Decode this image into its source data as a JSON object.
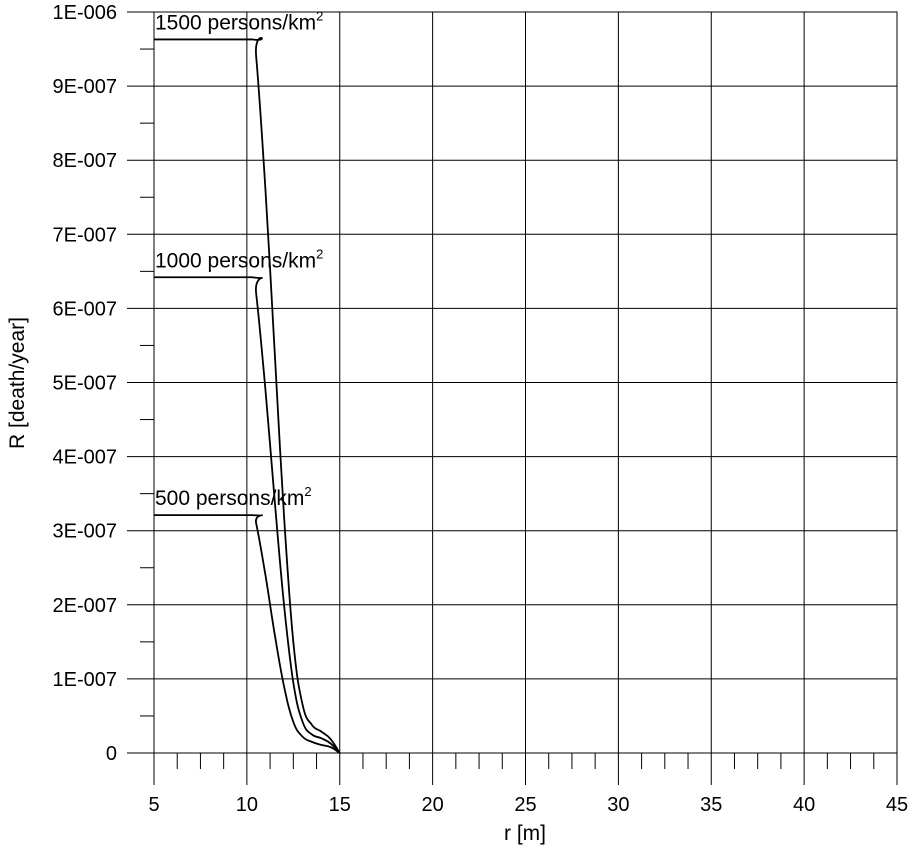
{
  "chart_data": {
    "type": "line",
    "xlabel": "r [m]",
    "ylabel": "R [death/year]",
    "xlim": [
      5,
      45
    ],
    "ylim": [
      0,
      1e-06
    ],
    "x_ticks": [
      "5",
      "10",
      "15",
      "20",
      "25",
      "30",
      "35",
      "40",
      "45"
    ],
    "y_ticks": [
      "0",
      "1E-007",
      "2E-007",
      "3E-007",
      "4E-007",
      "5E-007",
      "6E-007",
      "7E-007",
      "8E-007",
      "9E-007",
      "1E-006"
    ],
    "grid": true,
    "series": [
      {
        "name": "1500 persons/km",
        "superscript": "2",
        "x": [
          5,
          10.3,
          10.5,
          11,
          11.5,
          12,
          12.5,
          13,
          13.5,
          14,
          14.5,
          15
        ],
        "y": [
          9.63e-07,
          9.63e-07,
          9.4e-07,
          7.6e-07,
          5.4e-07,
          3.2e-07,
          1.5e-07,
          6.5e-08,
          3.8e-08,
          2.9e-08,
          1.9e-08,
          0
        ]
      },
      {
        "name": "1000 persons/km",
        "superscript": "2",
        "x": [
          5,
          10.3,
          10.5,
          11,
          11.5,
          12,
          12.5,
          13,
          13.5,
          14,
          14.5,
          15
        ],
        "y": [
          6.42e-07,
          6.42e-07,
          6.2e-07,
          4.9e-07,
          3.4e-07,
          2e-07,
          9.5e-08,
          4.2e-08,
          2.5e-08,
          2e-08,
          1.3e-08,
          0
        ]
      },
      {
        "name": "500 persons/km",
        "superscript": "2",
        "x": [
          5,
          10.3,
          10.5,
          11,
          11.5,
          12,
          12.5,
          13,
          13.5,
          14,
          14.5,
          15
        ],
        "y": [
          3.21e-07,
          3.21e-07,
          3.1e-07,
          2.4e-07,
          1.6e-07,
          9e-08,
          4.2e-08,
          2.2e-08,
          1.5e-08,
          1.1e-08,
          8e-09,
          0
        ]
      }
    ]
  }
}
